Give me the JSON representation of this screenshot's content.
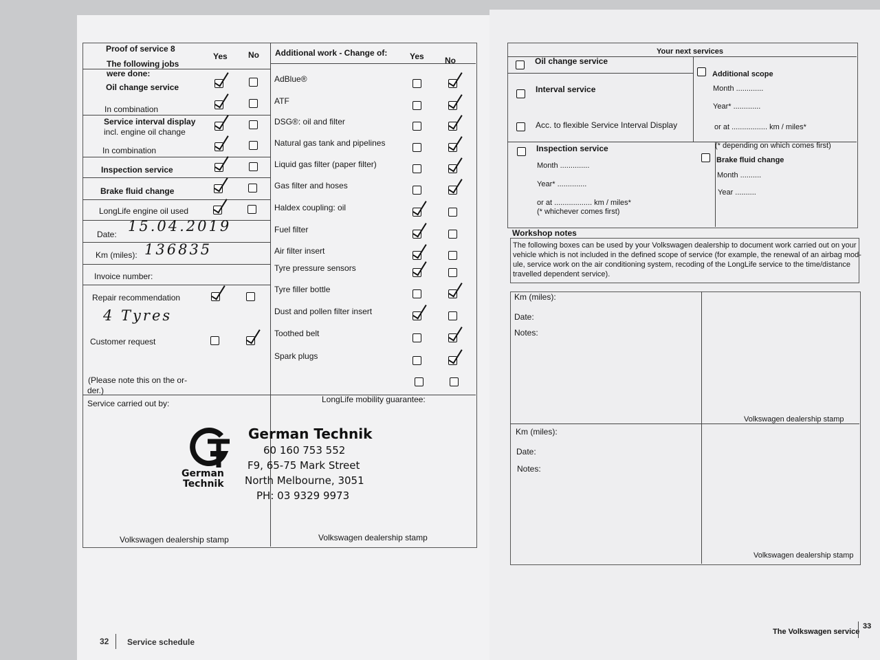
{
  "left_page": {
    "title": "Proof of service 8",
    "jobs_header": "The following jobs were done:",
    "yes": "Yes",
    "no": "No",
    "jobs": [
      "Oil change service",
      "In combination",
      "Service interval display",
      "incl. engine oil change",
      "In combination",
      "Inspection service",
      "Brake fluid change",
      "LongLife engine oil used"
    ],
    "date_label": "Date:",
    "date_value": "15.04.2019",
    "km_label": "Km (miles):",
    "km_value": "136835",
    "invoice_label": "Invoice number:",
    "repair_label": "Repair recommendation",
    "repair_value": "4 Tyres",
    "customer_label": "Customer request",
    "note_lines": [
      "(Please note this on the or-",
      "der.)"
    ],
    "carried_out_label": "Service carried out by:",
    "stamp_caption_left": "Volkswagen dealership stamp",
    "additional_header": "Additional work - Change of:",
    "additional_yes": "Yes",
    "additional_no": "No",
    "additional_items": [
      "AdBlue®",
      "ATF",
      "DSG®: oil and filter",
      "Natural gas tank and pipelines",
      "Liquid gas filter (paper filter)",
      "Gas filter and hoses",
      "Haldex coupling: oil",
      "Fuel filter",
      "Air filter insert",
      "Tyre pressure sensors",
      "Tyre filler bottle",
      "Dust and pollen filter insert",
      "Toothed belt",
      "Spark plugs"
    ],
    "mobility_label": "LongLife mobility guarantee:",
    "stamp_caption_right": "Volkswagen dealership stamp",
    "stamp": {
      "logo_lines": [
        "German",
        "Technik"
      ],
      "name": "German Technik",
      "lines": [
        "60 160 753 552",
        "F9, 65-75 Mark Street",
        "North Melbourne, 3051",
        "PH: 03 9329 9973"
      ]
    },
    "page_number": "32",
    "footer": "Service schedule"
  },
  "right_page": {
    "title": "Your next services",
    "oil_change": "Oil change service",
    "interval": "Interval service",
    "flexible": "Acc. to flexible Service Interval Display",
    "inspection": "Inspection service",
    "inspection_month": "Month ..............",
    "inspection_year": "Year* ..............",
    "inspection_or": "or at .................. km / miles*",
    "inspection_note": "(* whichever comes first)",
    "additional_scope": "Additional scope",
    "scope_month": "Month .............",
    "scope_year": "Year* .............",
    "scope_or": "or at ................. km / miles*",
    "scope_note": "(* depending on which comes first)",
    "brake": "Brake fluid change",
    "brake_month": "Month ..........",
    "brake_year": "Year ..........",
    "workshop_title": "Workshop notes",
    "workshop_text": [
      "The following boxes can be used by your Volkswagen dealership to document work carried out on your",
      "vehicle which is not included in the defined scope of service (for example, the renewal of an airbag mod-",
      "ule, service work on the air conditioning system, recoding of the LongLife service to the time/distance",
      "travelled dependent service)."
    ],
    "notes_boxes": [
      {
        "km": "Km (miles):",
        "date": "Date:",
        "notes": "Notes:",
        "stamp": "Volkswagen dealership stamp"
      },
      {
        "km": "Km (miles):",
        "date": "Date:",
        "notes": "Notes:",
        "stamp": "Volkswagen dealership stamp"
      }
    ],
    "footer": "The Volkswagen service",
    "page_number": "33"
  }
}
